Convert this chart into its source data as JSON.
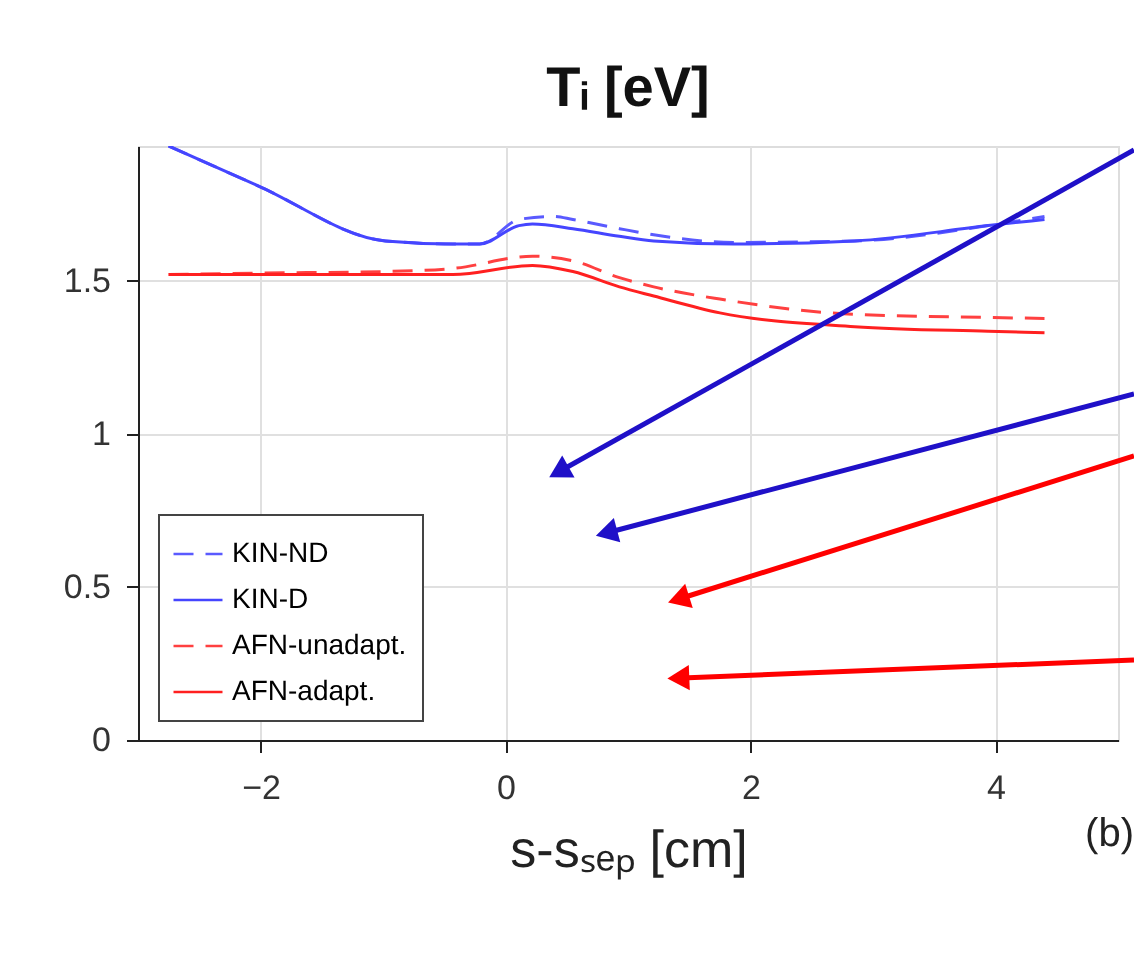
{
  "chart_data": {
    "type": "line",
    "title": "Tᵢ [eV]",
    "xlabel": "s-sₛₑₚ [cm]",
    "xlim": [
      -3,
      5
    ],
    "ylim": [
      0,
      1.94
    ],
    "xticks": [
      -2,
      0,
      2,
      4
    ],
    "yticks": [
      0,
      0.5,
      1,
      1.5
    ],
    "grid": true,
    "legend": "bottom left",
    "annotations": [
      "(b)"
    ],
    "series": [
      {
        "name": "KIN-ND",
        "color": "#5a5aff",
        "line_style": "dashed",
        "x": [
          -2.75,
          -2.02,
          -0.98,
          -0.43,
          -0.21,
          0.11,
          0.39,
          0.55,
          0.93,
          1.21,
          1.86,
          2.85,
          3.94,
          4.4
        ],
        "values": [
          1.94,
          1.81,
          1.63,
          1.62,
          1.62,
          1.7,
          1.71,
          1.7,
          1.67,
          1.65,
          1.625,
          1.63,
          1.68,
          1.71
        ]
      },
      {
        "name": "KIN-D",
        "color": "#4545ff",
        "line_style": "solid",
        "x": [
          -2.75,
          -2.02,
          -0.98,
          -0.43,
          -0.21,
          0.11,
          0.22,
          0.55,
          0.93,
          1.21,
          1.86,
          2.85,
          3.94,
          4.4
        ],
        "values": [
          1.94,
          1.81,
          1.63,
          1.62,
          1.62,
          1.68,
          1.685,
          1.67,
          1.645,
          1.63,
          1.62,
          1.63,
          1.68,
          1.7
        ]
      },
      {
        "name": "AFN-unadapt.",
        "color": "#ff4040",
        "line_style": "dashed",
        "x": [
          -2.75,
          -2.02,
          -0.98,
          -0.43,
          0.22,
          0.55,
          0.93,
          1.21,
          1.75,
          2.85,
          3.94,
          4.4
        ],
        "values": [
          1.52,
          1.525,
          1.53,
          1.54,
          1.58,
          1.565,
          1.51,
          1.48,
          1.44,
          1.39,
          1.38,
          1.377
        ]
      },
      {
        "name": "AFN-adapt.",
        "color": "#ff2020",
        "line_style": "solid",
        "x": [
          -2.75,
          -2.02,
          -0.98,
          -0.43,
          0.22,
          0.55,
          0.93,
          1.21,
          1.75,
          2.85,
          3.94,
          4.4
        ],
        "values": [
          1.52,
          1.52,
          1.52,
          1.52,
          1.55,
          1.53,
          1.48,
          1.45,
          1.395,
          1.35,
          1.335,
          1.33
        ]
      }
    ]
  }
}
